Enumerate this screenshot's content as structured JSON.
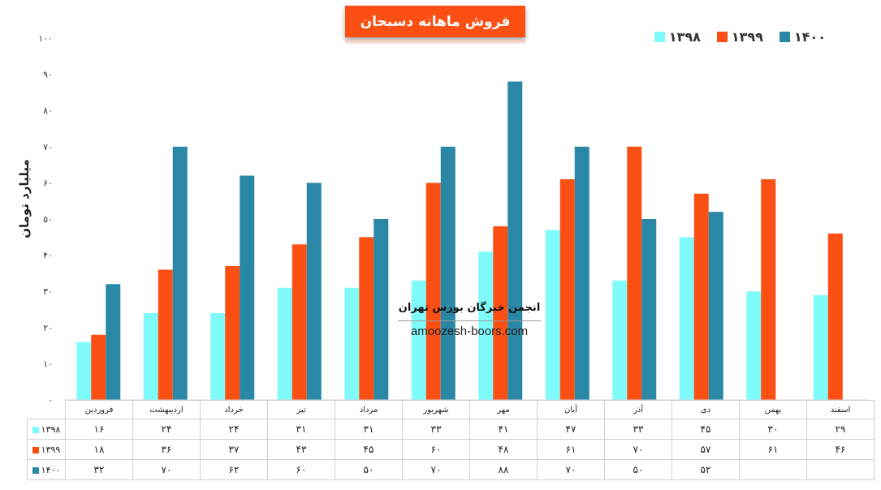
{
  "chart_data": {
    "type": "bar",
    "title": "فروش ماهانه دسبحان",
    "ylabel": "میلیارد تومان",
    "xlabel": "",
    "ylim": [
      0,
      100
    ],
    "yticks": [
      "۰",
      "۱۰",
      "۲۰",
      "۳۰",
      "۴۰",
      "۵۰",
      "۶۰",
      "۷۰",
      "۸۰",
      "۹۰",
      "۱۰۰"
    ],
    "categories": [
      "فروردین",
      "اردیبهشت",
      "خرداد",
      "تیر",
      "مرداد",
      "شهریور",
      "مهر",
      "آبان",
      "آذر",
      "دی",
      "بهمن",
      "اسفند"
    ],
    "series": [
      {
        "name": "۱۳۹۸",
        "color": "#80fbfb",
        "values": [
          16,
          24,
          24,
          31,
          31,
          33,
          41,
          47,
          33,
          45,
          30,
          29
        ],
        "labels": [
          "۱۶",
          "۲۴",
          "۲۴",
          "۳۱",
          "۳۱",
          "۳۳",
          "۴۱",
          "۴۷",
          "۳۳",
          "۴۵",
          "۳۰",
          "۲۹"
        ]
      },
      {
        "name": "۱۳۹۹",
        "color": "#fb4f14",
        "values": [
          18,
          36,
          37,
          43,
          45,
          60,
          48,
          61,
          70,
          57,
          61,
          46
        ],
        "labels": [
          "۱۸",
          "۳۶",
          "۳۷",
          "۴۳",
          "۴۵",
          "۶۰",
          "۴۸",
          "۶۱",
          "۷۰",
          "۵۷",
          "۶۱",
          "۴۶"
        ]
      },
      {
        "name": "۱۴۰۰",
        "color": "#2a87a6",
        "values": [
          32,
          70,
          62,
          60,
          50,
          70,
          88,
          70,
          50,
          52,
          null,
          null
        ],
        "labels": [
          "۳۲",
          "۷۰",
          "۶۲",
          "۶۰",
          "۵۰",
          "۷۰",
          "۸۸",
          "۷۰",
          "۵۰",
          "۵۲",
          "",
          ""
        ]
      }
    ],
    "legend_position": "top-right",
    "grid": false,
    "data_table": true
  },
  "watermark": {
    "title": "انجمن خبرگان بورس تهران",
    "url": "amoozesh-boors.com"
  }
}
